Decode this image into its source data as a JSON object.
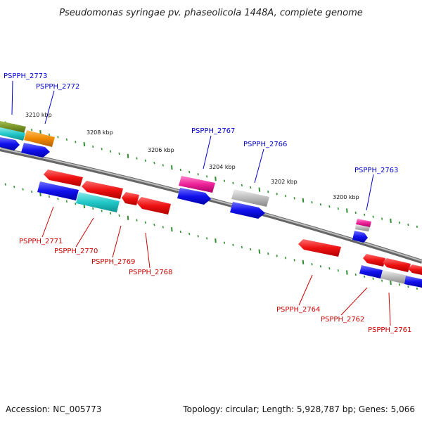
{
  "title": "Pseudomonas syringae pv. phaseolicola 1448A, complete genome",
  "footer": {
    "accession": "Accession: NC_005773",
    "summary": "Topology: circular; Length: 5,928,787 bp; Genes: 5,066"
  },
  "ticks": [
    "3210 kbp",
    "3208 kbp",
    "3206 kbp",
    "3204 kbp",
    "3202 kbp",
    "3200 kbp"
  ],
  "colors": {
    "backbone": "#7a7a7a",
    "tick": "#2f8f2f",
    "red": "#ee1111",
    "blue": "#1111ee",
    "cyan": "#22c8c8",
    "gray": "#b8b8b8",
    "pink": "#ee2299",
    "orange": "#f08a00",
    "olive": "#6f8a22",
    "label_top": "#0000cc",
    "label_bottom": "#cc0000"
  },
  "labels_top": [
    "PSPPH_2773",
    "PSPPH_2772",
    "PSPPH_2767",
    "PSPPH_2766",
    "PSPPH_2763"
  ],
  "labels_bottom": [
    "PSPPH_2771",
    "PSPPH_2770",
    "PSPPH_2769",
    "PSPPH_2768",
    "PSPPH_2764",
    "PSPPH_2762",
    "PSPPH_2761"
  ]
}
